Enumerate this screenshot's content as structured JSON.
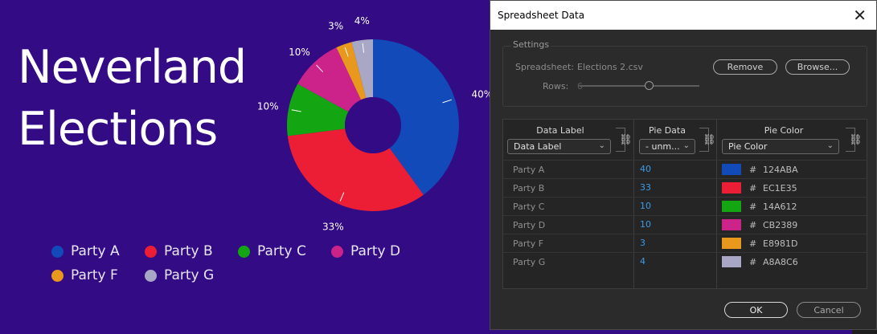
{
  "title_line1": "Neverland",
  "title_line2": "Elections",
  "chart_data": {
    "type": "pie",
    "donut": true,
    "categories": [
      "Party A",
      "Party B",
      "Party C",
      "Party D",
      "Party F",
      "Party G"
    ],
    "values": [
      40,
      33,
      10,
      10,
      3,
      4
    ],
    "data_labels": [
      "40%",
      "33%",
      "10%",
      "10%",
      "3%",
      "4%"
    ],
    "colors": [
      "#124ABA",
      "#EC1E35",
      "#14A612",
      "#CB2389",
      "#E8981D",
      "#A8A8C6"
    ],
    "legend_placement": "bottom-left"
  },
  "legend": [
    {
      "label": "Party A",
      "color": "#124ABA"
    },
    {
      "label": "Party B",
      "color": "#EC1E35"
    },
    {
      "label": "Party C",
      "color": "#14A612"
    },
    {
      "label": "Party D",
      "color": "#CB2389"
    },
    {
      "label": "Party F",
      "color": "#E8981D"
    },
    {
      "label": "Party G",
      "color": "#A8A8C6"
    }
  ],
  "dialog": {
    "title": "Spreadsheet Data",
    "close_icon": "close-icon",
    "settings": {
      "title": "Settings",
      "spreadsheet_label": "Spreadsheet:",
      "spreadsheet_value": "Elections 2.csv",
      "remove_label": "Remove",
      "browse_label": "Browse...",
      "rows_label": "Rows:",
      "rows_value": "6"
    },
    "columns": [
      {
        "header": "Data Label",
        "select": "Data Label"
      },
      {
        "header": "Pie Data",
        "select": "- unm..."
      },
      {
        "header": "Pie Color",
        "select": "Pie Color"
      }
    ],
    "rows": [
      {
        "label": "Party A",
        "value": "40",
        "hash": "#",
        "hex": "124ABA",
        "color": "#124ABA"
      },
      {
        "label": "Party B",
        "value": "33",
        "hash": "#",
        "hex": "EC1E35",
        "color": "#EC1E35"
      },
      {
        "label": "Party C",
        "value": "10",
        "hash": "#",
        "hex": "14A612",
        "color": "#14A612"
      },
      {
        "label": "Party D",
        "value": "10",
        "hash": "#",
        "hex": "CB2389",
        "color": "#CB2389"
      },
      {
        "label": "Party F",
        "value": "3",
        "hash": "#",
        "hex": "E8981D",
        "color": "#E8981D"
      },
      {
        "label": "Party G",
        "value": "4",
        "hash": "#",
        "hex": "A8A8C6",
        "color": "#A8A8C6"
      }
    ],
    "ok_label": "OK",
    "cancel_label": "Cancel"
  }
}
